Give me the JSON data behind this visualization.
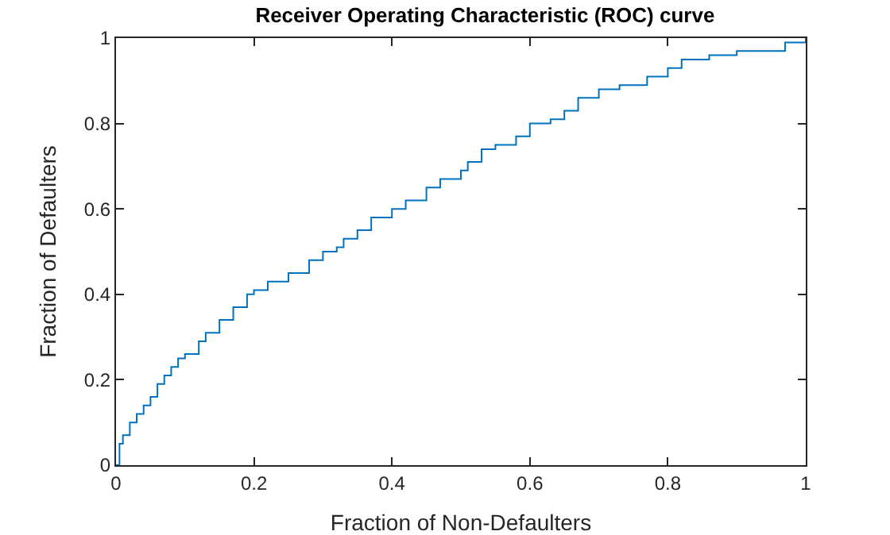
{
  "chart_data": {
    "type": "step",
    "title": "Receiver Operating Characteristic (ROC) curve",
    "xlabel": "Fraction of Non-Defaulters",
    "ylabel": "Fraction of Defaulters",
    "x": [
      0,
      0.005,
      0.01,
      0.02,
      0.03,
      0.04,
      0.05,
      0.06,
      0.07,
      0.08,
      0.09,
      0.1,
      0.12,
      0.13,
      0.15,
      0.17,
      0.19,
      0.2,
      0.22,
      0.25,
      0.28,
      0.3,
      0.32,
      0.33,
      0.35,
      0.37,
      0.4,
      0.42,
      0.45,
      0.47,
      0.5,
      0.51,
      0.53,
      0.55,
      0.58,
      0.6,
      0.63,
      0.65,
      0.67,
      0.7,
      0.73,
      0.77,
      0.8,
      0.82,
      0.86,
      0.9,
      0.94,
      0.97,
      1
    ],
    "series": [
      {
        "color": "#0072bd",
        "values": [
          0,
          0.05,
          0.07,
          0.1,
          0.12,
          0.14,
          0.16,
          0.19,
          0.21,
          0.23,
          0.25,
          0.26,
          0.29,
          0.31,
          0.34,
          0.37,
          0.4,
          0.41,
          0.43,
          0.45,
          0.48,
          0.5,
          0.51,
          0.53,
          0.55,
          0.58,
          0.6,
          0.62,
          0.65,
          0.67,
          0.69,
          0.71,
          0.74,
          0.75,
          0.77,
          0.8,
          0.81,
          0.83,
          0.86,
          0.88,
          0.89,
          0.91,
          0.93,
          0.95,
          0.96,
          0.97,
          0.97,
          0.99,
          1
        ]
      }
    ],
    "xlim": [
      0,
      1
    ],
    "ylim": [
      0,
      1
    ],
    "xticks": [
      0,
      0.2,
      0.4,
      0.6,
      0.8,
      1
    ],
    "yticks": [
      0,
      0.2,
      0.4,
      0.6,
      0.8,
      1
    ],
    "grid": false
  }
}
